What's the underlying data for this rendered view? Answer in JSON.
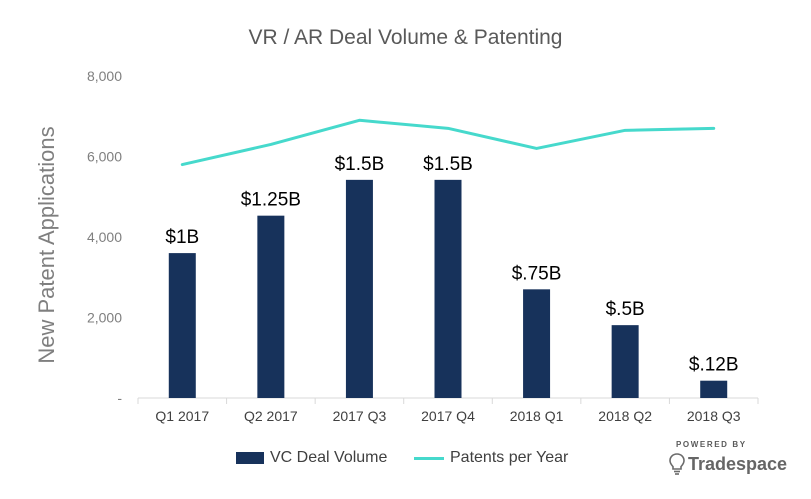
{
  "chart_data": {
    "type": "bar",
    "title": "VR / AR Deal Volume & Patenting",
    "ylabel": "New Patent Applications",
    "xlabel": "",
    "categories": [
      "Q1 2017",
      "Q2 2017",
      "2017 Q3",
      "2017 Q4",
      "2018 Q1",
      "2018 Q2",
      "2018 Q3"
    ],
    "ylim": [
      0,
      8000
    ],
    "yticks": [
      0,
      2000,
      4000,
      6000,
      8000
    ],
    "ytick_labels": [
      "-",
      "2,000",
      "4,000",
      "6,000",
      "8,000"
    ],
    "series": [
      {
        "name": "VC Deal Volume",
        "type": "bar",
        "values": [
          3600,
          4530,
          5420,
          5420,
          2700,
          1810,
          430
        ],
        "data_labels": [
          "$1B",
          "$1.25B",
          "$1.5B",
          "$1.5B",
          "$.75B",
          "$.5B",
          "$.12B"
        ]
      },
      {
        "name": "Patents per Year",
        "type": "line",
        "values": [
          5800,
          6300,
          6900,
          6700,
          6200,
          6650,
          6700
        ]
      }
    ],
    "grid": false,
    "legend": "bottom-center"
  },
  "colors": {
    "bar": "#17325b",
    "line": "#46d9cc",
    "title": "#595959",
    "axis": "#7f7f7f",
    "axis_line": "#d9d9d9"
  },
  "watermark": {
    "top": "POWERED BY",
    "brand": "Tradespace",
    "icon": "lightbulb-icon"
  }
}
